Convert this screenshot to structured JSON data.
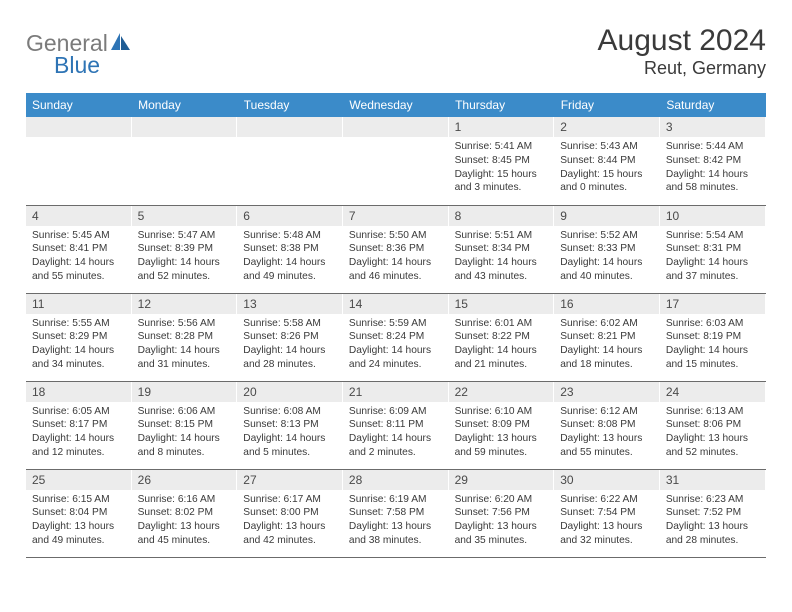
{
  "header": {
    "logo_general": "General",
    "logo_blue": "Blue",
    "month_title": "August 2024",
    "location": "Reut, Germany"
  },
  "colors": {
    "header_bg": "#3b8bc9",
    "header_text": "#ffffff",
    "daynum_bg": "#ececec",
    "text": "#3a3a3a",
    "logo_gray": "#7b7b7b",
    "logo_blue": "#2e74b5",
    "row_border": "#6b6b6b"
  },
  "weekdays": [
    "Sunday",
    "Monday",
    "Tuesday",
    "Wednesday",
    "Thursday",
    "Friday",
    "Saturday"
  ],
  "weeks": [
    [
      {
        "n": "",
        "sr": "",
        "ss": "",
        "dl1": "",
        "dl2": ""
      },
      {
        "n": "",
        "sr": "",
        "ss": "",
        "dl1": "",
        "dl2": ""
      },
      {
        "n": "",
        "sr": "",
        "ss": "",
        "dl1": "",
        "dl2": ""
      },
      {
        "n": "",
        "sr": "",
        "ss": "",
        "dl1": "",
        "dl2": ""
      },
      {
        "n": "1",
        "sr": "Sunrise: 5:41 AM",
        "ss": "Sunset: 8:45 PM",
        "dl1": "Daylight: 15 hours",
        "dl2": "and 3 minutes."
      },
      {
        "n": "2",
        "sr": "Sunrise: 5:43 AM",
        "ss": "Sunset: 8:44 PM",
        "dl1": "Daylight: 15 hours",
        "dl2": "and 0 minutes."
      },
      {
        "n": "3",
        "sr": "Sunrise: 5:44 AM",
        "ss": "Sunset: 8:42 PM",
        "dl1": "Daylight: 14 hours",
        "dl2": "and 58 minutes."
      }
    ],
    [
      {
        "n": "4",
        "sr": "Sunrise: 5:45 AM",
        "ss": "Sunset: 8:41 PM",
        "dl1": "Daylight: 14 hours",
        "dl2": "and 55 minutes."
      },
      {
        "n": "5",
        "sr": "Sunrise: 5:47 AM",
        "ss": "Sunset: 8:39 PM",
        "dl1": "Daylight: 14 hours",
        "dl2": "and 52 minutes."
      },
      {
        "n": "6",
        "sr": "Sunrise: 5:48 AM",
        "ss": "Sunset: 8:38 PM",
        "dl1": "Daylight: 14 hours",
        "dl2": "and 49 minutes."
      },
      {
        "n": "7",
        "sr": "Sunrise: 5:50 AM",
        "ss": "Sunset: 8:36 PM",
        "dl1": "Daylight: 14 hours",
        "dl2": "and 46 minutes."
      },
      {
        "n": "8",
        "sr": "Sunrise: 5:51 AM",
        "ss": "Sunset: 8:34 PM",
        "dl1": "Daylight: 14 hours",
        "dl2": "and 43 minutes."
      },
      {
        "n": "9",
        "sr": "Sunrise: 5:52 AM",
        "ss": "Sunset: 8:33 PM",
        "dl1": "Daylight: 14 hours",
        "dl2": "and 40 minutes."
      },
      {
        "n": "10",
        "sr": "Sunrise: 5:54 AM",
        "ss": "Sunset: 8:31 PM",
        "dl1": "Daylight: 14 hours",
        "dl2": "and 37 minutes."
      }
    ],
    [
      {
        "n": "11",
        "sr": "Sunrise: 5:55 AM",
        "ss": "Sunset: 8:29 PM",
        "dl1": "Daylight: 14 hours",
        "dl2": "and 34 minutes."
      },
      {
        "n": "12",
        "sr": "Sunrise: 5:56 AM",
        "ss": "Sunset: 8:28 PM",
        "dl1": "Daylight: 14 hours",
        "dl2": "and 31 minutes."
      },
      {
        "n": "13",
        "sr": "Sunrise: 5:58 AM",
        "ss": "Sunset: 8:26 PM",
        "dl1": "Daylight: 14 hours",
        "dl2": "and 28 minutes."
      },
      {
        "n": "14",
        "sr": "Sunrise: 5:59 AM",
        "ss": "Sunset: 8:24 PM",
        "dl1": "Daylight: 14 hours",
        "dl2": "and 24 minutes."
      },
      {
        "n": "15",
        "sr": "Sunrise: 6:01 AM",
        "ss": "Sunset: 8:22 PM",
        "dl1": "Daylight: 14 hours",
        "dl2": "and 21 minutes."
      },
      {
        "n": "16",
        "sr": "Sunrise: 6:02 AM",
        "ss": "Sunset: 8:21 PM",
        "dl1": "Daylight: 14 hours",
        "dl2": "and 18 minutes."
      },
      {
        "n": "17",
        "sr": "Sunrise: 6:03 AM",
        "ss": "Sunset: 8:19 PM",
        "dl1": "Daylight: 14 hours",
        "dl2": "and 15 minutes."
      }
    ],
    [
      {
        "n": "18",
        "sr": "Sunrise: 6:05 AM",
        "ss": "Sunset: 8:17 PM",
        "dl1": "Daylight: 14 hours",
        "dl2": "and 12 minutes."
      },
      {
        "n": "19",
        "sr": "Sunrise: 6:06 AM",
        "ss": "Sunset: 8:15 PM",
        "dl1": "Daylight: 14 hours",
        "dl2": "and 8 minutes."
      },
      {
        "n": "20",
        "sr": "Sunrise: 6:08 AM",
        "ss": "Sunset: 8:13 PM",
        "dl1": "Daylight: 14 hours",
        "dl2": "and 5 minutes."
      },
      {
        "n": "21",
        "sr": "Sunrise: 6:09 AM",
        "ss": "Sunset: 8:11 PM",
        "dl1": "Daylight: 14 hours",
        "dl2": "and 2 minutes."
      },
      {
        "n": "22",
        "sr": "Sunrise: 6:10 AM",
        "ss": "Sunset: 8:09 PM",
        "dl1": "Daylight: 13 hours",
        "dl2": "and 59 minutes."
      },
      {
        "n": "23",
        "sr": "Sunrise: 6:12 AM",
        "ss": "Sunset: 8:08 PM",
        "dl1": "Daylight: 13 hours",
        "dl2": "and 55 minutes."
      },
      {
        "n": "24",
        "sr": "Sunrise: 6:13 AM",
        "ss": "Sunset: 8:06 PM",
        "dl1": "Daylight: 13 hours",
        "dl2": "and 52 minutes."
      }
    ],
    [
      {
        "n": "25",
        "sr": "Sunrise: 6:15 AM",
        "ss": "Sunset: 8:04 PM",
        "dl1": "Daylight: 13 hours",
        "dl2": "and 49 minutes."
      },
      {
        "n": "26",
        "sr": "Sunrise: 6:16 AM",
        "ss": "Sunset: 8:02 PM",
        "dl1": "Daylight: 13 hours",
        "dl2": "and 45 minutes."
      },
      {
        "n": "27",
        "sr": "Sunrise: 6:17 AM",
        "ss": "Sunset: 8:00 PM",
        "dl1": "Daylight: 13 hours",
        "dl2": "and 42 minutes."
      },
      {
        "n": "28",
        "sr": "Sunrise: 6:19 AM",
        "ss": "Sunset: 7:58 PM",
        "dl1": "Daylight: 13 hours",
        "dl2": "and 38 minutes."
      },
      {
        "n": "29",
        "sr": "Sunrise: 6:20 AM",
        "ss": "Sunset: 7:56 PM",
        "dl1": "Daylight: 13 hours",
        "dl2": "and 35 minutes."
      },
      {
        "n": "30",
        "sr": "Sunrise: 6:22 AM",
        "ss": "Sunset: 7:54 PM",
        "dl1": "Daylight: 13 hours",
        "dl2": "and 32 minutes."
      },
      {
        "n": "31",
        "sr": "Sunrise: 6:23 AM",
        "ss": "Sunset: 7:52 PM",
        "dl1": "Daylight: 13 hours",
        "dl2": "and 28 minutes."
      }
    ]
  ]
}
